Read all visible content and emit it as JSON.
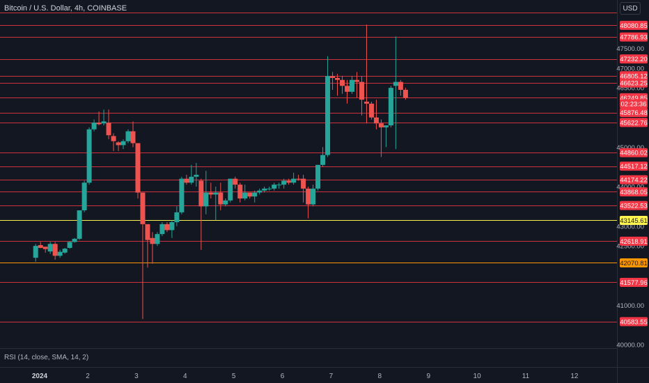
{
  "header": {
    "symbol_title": "Bitcoin / U.S. Dollar, 4h, COINBASE",
    "currency_button": "USD"
  },
  "indicator": {
    "rsi_label": "RSI (14, close, SMA, 14, 2)"
  },
  "colors": {
    "background": "#131722",
    "up": "#26a69a",
    "down": "#ef5350",
    "level_line": "#f23645",
    "yellow_line": "#fff44f",
    "orange_line": "#ff9800",
    "axis_text": "#b2b5be"
  },
  "chart_data": {
    "type": "candlestick",
    "x_tick_labels": [
      "2024",
      "2",
      "3",
      "4",
      "5",
      "6",
      "7",
      "8",
      "9",
      "10",
      "11",
      "12"
    ],
    "x_tick_days": [
      1,
      2,
      3,
      4,
      5,
      6,
      7,
      8,
      9,
      10,
      11,
      12
    ],
    "y_tick_labels": [
      "47500.00",
      "47000.00",
      "46500.00",
      "45000.00",
      "44000.00",
      "43000.00",
      "42500.00",
      "41000.00",
      "40000.00"
    ],
    "y_tick_values": [
      47500,
      47000,
      46500,
      45000,
      44000,
      43000,
      42500,
      41000,
      40000
    ],
    "price_levels": [
      {
        "value": 48080.85,
        "label": "48080.85",
        "color": "red"
      },
      {
        "value": 47786.93,
        "label": "47786.93",
        "color": "red"
      },
      {
        "value": 47232.2,
        "label": "47232.20",
        "color": "red"
      },
      {
        "value": 46805.12,
        "label": "46805.12",
        "color": "red"
      },
      {
        "value": 46623.25,
        "label": "46623.25",
        "color": "red"
      },
      {
        "value": 46249.85,
        "label": "46249.85",
        "color": "red"
      },
      {
        "value": 45876.48,
        "label": "45876.48",
        "color": "red"
      },
      {
        "value": 45622.76,
        "label": "45622.76",
        "color": "red"
      },
      {
        "value": 44860.02,
        "label": "44860.02",
        "color": "red"
      },
      {
        "value": 44517.12,
        "label": "44517.12",
        "color": "red"
      },
      {
        "value": 44174.22,
        "label": "44174.22",
        "color": "red"
      },
      {
        "value": 43868.05,
        "label": "43868.05",
        "color": "red"
      },
      {
        "value": 43522.53,
        "label": "43522.53",
        "color": "red"
      },
      {
        "value": 43145.61,
        "label": "43145.61",
        "color": "yellow"
      },
      {
        "value": 42618.91,
        "label": "42618.91",
        "color": "red"
      },
      {
        "value": 42070.81,
        "label": "42070.81",
        "color": "orange"
      },
      {
        "value": 41577.96,
        "label": "41577.96",
        "color": "red"
      },
      {
        "value": 40583.55,
        "label": "40583.55",
        "color": "red"
      }
    ],
    "extra_top_line": 48400,
    "countdown": {
      "label": "02:23:36",
      "value": 46100
    },
    "ylim": [
      39950,
      48500
    ],
    "candles": [
      [
        0.93,
        42200,
        42500,
        42100,
        42550,
        "up"
      ],
      [
        1.03,
        42450,
        42520,
        42440,
        42600,
        "down"
      ],
      [
        1.13,
        42420,
        42480,
        42330,
        42480,
        "down"
      ],
      [
        1.23,
        42360,
        42550,
        42300,
        42600,
        "up"
      ],
      [
        1.33,
        42550,
        42250,
        42150,
        42600,
        "down"
      ],
      [
        1.43,
        42250,
        42350,
        42200,
        42400,
        "up"
      ],
      [
        1.53,
        42330,
        42430,
        42300,
        42450,
        "up"
      ],
      [
        1.63,
        42450,
        42600,
        42430,
        42620,
        "up"
      ],
      [
        1.73,
        42600,
        42680,
        42580,
        42700,
        "up"
      ],
      [
        1.83,
        42680,
        43400,
        42650,
        43400,
        "up"
      ],
      [
        1.93,
        43400,
        44100,
        43350,
        44150,
        "up"
      ],
      [
        2.03,
        44100,
        45450,
        44050,
        45500,
        "up"
      ],
      [
        2.13,
        45450,
        45620,
        45400,
        45700,
        "up"
      ],
      [
        2.23,
        45580,
        45620,
        45550,
        45900,
        "down"
      ],
      [
        2.33,
        45600,
        45650,
        45550,
        45950,
        "up"
      ],
      [
        2.43,
        45620,
        45300,
        45200,
        45950,
        "down"
      ],
      [
        2.53,
        45280,
        45150,
        44900,
        45350,
        "down"
      ],
      [
        2.63,
        45120,
        45050,
        44900,
        45150,
        "down"
      ],
      [
        2.73,
        45050,
        45150,
        44950,
        45200,
        "up"
      ],
      [
        2.83,
        45150,
        45400,
        45100,
        45450,
        "up"
      ],
      [
        2.93,
        45400,
        45100,
        45000,
        45650,
        "down"
      ],
      [
        3.03,
        45100,
        43850,
        43700,
        45100,
        "down"
      ],
      [
        3.13,
        43850,
        43050,
        40650,
        43850,
        "down"
      ],
      [
        3.23,
        43050,
        42650,
        41950,
        43050,
        "down"
      ],
      [
        3.33,
        42700,
        42550,
        42050,
        42850,
        "down"
      ],
      [
        3.43,
        42550,
        42800,
        42500,
        42850,
        "up"
      ],
      [
        3.53,
        42800,
        43050,
        42750,
        43100,
        "up"
      ],
      [
        3.63,
        43050,
        42900,
        42850,
        43100,
        "down"
      ],
      [
        3.73,
        42900,
        43100,
        42700,
        43150,
        "up"
      ],
      [
        3.83,
        43100,
        43350,
        43000,
        43500,
        "up"
      ],
      [
        3.93,
        43350,
        44200,
        43300,
        44250,
        "up"
      ],
      [
        4.03,
        44200,
        44100,
        44050,
        44300,
        "down"
      ],
      [
        4.13,
        44100,
        44250,
        44050,
        44550,
        "up"
      ],
      [
        4.23,
        44250,
        44300,
        44000,
        44600,
        "up"
      ],
      [
        4.33,
        44150,
        43500,
        42400,
        44200,
        "down"
      ],
      [
        4.43,
        43500,
        43850,
        43300,
        44400,
        "up"
      ],
      [
        4.53,
        43850,
        43800,
        43700,
        44100,
        "down"
      ],
      [
        4.63,
        43800,
        43850,
        43150,
        44000,
        "up"
      ],
      [
        4.73,
        43850,
        43550,
        43400,
        44100,
        "down"
      ],
      [
        4.83,
        43550,
        43650,
        43500,
        43700,
        "up"
      ],
      [
        4.93,
        43650,
        44200,
        43600,
        44200,
        "up"
      ],
      [
        5.03,
        44200,
        44050,
        43950,
        44250,
        "down"
      ],
      [
        5.13,
        44050,
        43700,
        43600,
        44100,
        "down"
      ],
      [
        5.23,
        43700,
        43850,
        43650,
        44050,
        "up"
      ],
      [
        5.33,
        43850,
        43750,
        43700,
        43850,
        "down"
      ],
      [
        5.43,
        43750,
        43850,
        43600,
        43900,
        "up"
      ],
      [
        5.53,
        43850,
        43900,
        43800,
        43950,
        "up"
      ],
      [
        5.63,
        43900,
        43950,
        43850,
        44000,
        "up"
      ],
      [
        5.73,
        43950,
        43950,
        43900,
        44000,
        "up"
      ],
      [
        5.83,
        43950,
        44050,
        43900,
        44100,
        "up"
      ],
      [
        5.93,
        44050,
        44050,
        43950,
        44100,
        "up"
      ],
      [
        6.03,
        44050,
        44150,
        43950,
        44200,
        "up"
      ],
      [
        6.13,
        44150,
        44100,
        44050,
        44200,
        "down"
      ],
      [
        6.23,
        44100,
        44200,
        44050,
        44350,
        "up"
      ],
      [
        6.33,
        44200,
        44200,
        44150,
        44300,
        "down"
      ],
      [
        6.43,
        44200,
        43950,
        43600,
        44300,
        "down"
      ],
      [
        6.53,
        43950,
        43550,
        43200,
        44000,
        "down"
      ],
      [
        6.63,
        43550,
        43950,
        43500,
        44050,
        "up"
      ],
      [
        6.73,
        43950,
        44550,
        43900,
        44550,
        "up"
      ],
      [
        6.83,
        44550,
        44800,
        44500,
        45000,
        "up"
      ],
      [
        6.93,
        44800,
        46800,
        44750,
        47300,
        "up"
      ],
      [
        7.03,
        46800,
        46750,
        46450,
        46900,
        "down"
      ],
      [
        7.13,
        46750,
        46700,
        46300,
        46850,
        "down"
      ],
      [
        7.23,
        46700,
        46550,
        46350,
        46800,
        "down"
      ],
      [
        7.33,
        46550,
        46400,
        46100,
        46700,
        "down"
      ],
      [
        7.43,
        46400,
        46700,
        46350,
        46800,
        "up"
      ],
      [
        7.53,
        46700,
        46650,
        46250,
        46900,
        "down"
      ],
      [
        7.63,
        46650,
        46200,
        45800,
        46800,
        "down"
      ],
      [
        7.73,
        46150,
        46100,
        45600,
        48100,
        "down"
      ],
      [
        7.83,
        46100,
        45750,
        45700,
        46150,
        "down"
      ],
      [
        7.93,
        45750,
        45600,
        45450,
        46200,
        "down"
      ],
      [
        8.03,
        45600,
        45500,
        44750,
        45700,
        "down"
      ],
      [
        8.13,
        45500,
        45550,
        45000,
        45550,
        "up"
      ],
      [
        8.23,
        45550,
        46500,
        45500,
        46550,
        "up"
      ],
      [
        8.33,
        46550,
        46650,
        44950,
        47800,
        "up"
      ],
      [
        8.43,
        46650,
        46450,
        46300,
        46700,
        "down"
      ],
      [
        8.53,
        46450,
        46250,
        46200,
        46500,
        "down"
      ]
    ]
  }
}
